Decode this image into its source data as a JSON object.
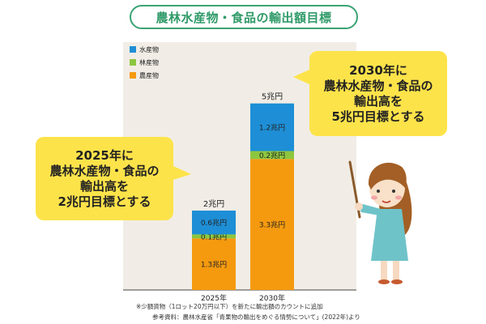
{
  "title": "農林水産物・食品の輸出額目標",
  "chart_data": {
    "type": "bar",
    "stacked": true,
    "categories": [
      "2025年",
      "2030年"
    ],
    "series": [
      {
        "name": "農産物",
        "color": "#f59a0f",
        "values": [
          1.3,
          3.3
        ],
        "labels": [
          "1.3兆円",
          "3.3兆円"
        ]
      },
      {
        "name": "林産物",
        "color": "#8cc63f",
        "values": [
          0.1,
          0.2
        ],
        "labels": [
          "0.1兆円",
          "0.2兆円"
        ]
      },
      {
        "name": "水産物",
        "color": "#1e8fd6",
        "values": [
          0.6,
          1.2
        ],
        "labels": [
          "0.6兆円",
          "1.2兆円"
        ]
      }
    ],
    "totals": [
      "2兆円",
      "5兆円"
    ],
    "legend_position": "top-left",
    "ylim": [
      0,
      5.5
    ]
  },
  "callouts": {
    "y2025": [
      "2025年に",
      "農林水産物・食品の",
      "輸出高を",
      "2兆円目標とする"
    ],
    "y2030": [
      "2030年に",
      "農林水産物・食品の",
      "輸出高を",
      "5兆円目標とする"
    ]
  },
  "notes": {
    "line1": "※少額貨物（1ロット20万円以下）を新たに輸出額のカウントに追加",
    "line2": "参考資料：農林水産省「青果物の輸出をめぐる情勢について」(2022年)より"
  },
  "colors": {
    "plot_bg": "#f1ede6",
    "title_green": "#2f9a68",
    "bubble": "#fde34a"
  }
}
